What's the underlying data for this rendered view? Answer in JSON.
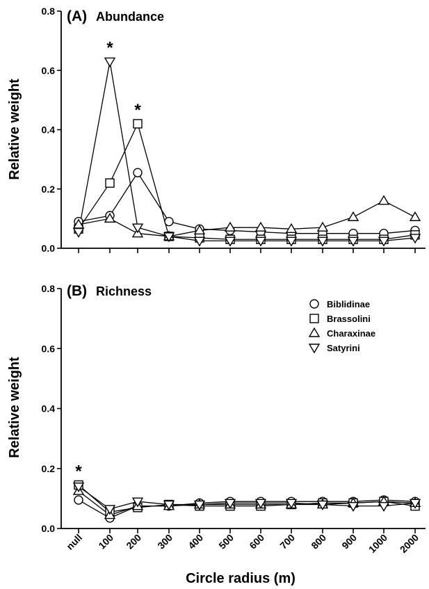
{
  "chart_data": [
    {
      "type": "line",
      "panel_label": "(A)",
      "title": "Abundance",
      "xlabel": "",
      "ylabel": "Relative weight",
      "ylim": [
        0,
        0.8
      ],
      "yticks": [
        "0.0",
        "0.2",
        "0.4",
        "0.6",
        "0.8"
      ],
      "grid": false,
      "categories": [
        "null",
        "100",
        "200",
        "300",
        "400",
        "500",
        "600",
        "700",
        "800",
        "900",
        "1000",
        "2000"
      ],
      "series": [
        {
          "name": "Biblidinae",
          "marker": "circle",
          "x": [
            0,
            1,
            2,
            3,
            4,
            5,
            6,
            7,
            8,
            9,
            10,
            11
          ],
          "values": [
            0.09,
            0.11,
            0.255,
            0.09,
            0.065,
            0.06,
            0.055,
            0.05,
            0.05,
            0.05,
            0.05,
            0.06
          ]
        },
        {
          "name": "Brassolini",
          "marker": "square",
          "x": [
            0,
            1,
            2,
            3,
            4,
            5,
            6,
            7,
            8,
            9,
            10,
            11
          ],
          "values": [
            0.065,
            0.22,
            0.42,
            0.04,
            0.035,
            0.03,
            0.03,
            0.03,
            0.03,
            0.03,
            0.03,
            0.045
          ]
        },
        {
          "name": "Charaxinae",
          "marker": "triangle-up",
          "x": [
            0,
            1,
            2,
            3,
            4,
            5,
            6,
            7,
            8,
            9,
            10,
            11
          ],
          "values": [
            0.08,
            0.1,
            0.05,
            0.04,
            0.06,
            0.07,
            0.07,
            0.065,
            0.07,
            0.105,
            0.16,
            0.105
          ]
        },
        {
          "name": "Satyrini",
          "marker": "triangle-down",
          "x": [
            0,
            1,
            2,
            3,
            4,
            5,
            6,
            7,
            8,
            9,
            10,
            11
          ],
          "values": [
            0.055,
            0.63,
            0.07,
            0.04,
            0.025,
            0.025,
            0.025,
            0.025,
            0.025,
            0.025,
            0.025,
            0.035
          ]
        }
      ],
      "annotations": [
        {
          "text": "*",
          "x": 1,
          "y": 0.63
        },
        {
          "text": "*",
          "x": 2,
          "y": 0.42
        }
      ]
    },
    {
      "type": "line",
      "panel_label": "(B)",
      "title": "Richness",
      "xlabel": "Circle radius (m)",
      "ylabel": "Relative weight",
      "ylim": [
        0,
        0.8
      ],
      "yticks": [
        "0.0",
        "0.2",
        "0.4",
        "0.6",
        "0.8"
      ],
      "grid": false,
      "legend_position": "top-right",
      "categories": [
        "null",
        "100",
        "200",
        "300",
        "400",
        "500",
        "600",
        "700",
        "800",
        "900",
        "1000",
        "2000"
      ],
      "series": [
        {
          "name": "Biblidinae",
          "marker": "circle",
          "values": [
            0.095,
            0.035,
            0.075,
            0.075,
            0.085,
            0.09,
            0.09,
            0.09,
            0.09,
            0.09,
            0.095,
            0.09
          ]
        },
        {
          "name": "Brassolini",
          "marker": "square",
          "values": [
            0.145,
            0.055,
            0.07,
            0.08,
            0.075,
            0.075,
            0.075,
            0.08,
            0.085,
            0.085,
            0.09,
            0.075
          ]
        },
        {
          "name": "Charaxinae",
          "marker": "triangle-up",
          "values": [
            0.125,
            0.045,
            0.075,
            0.075,
            0.08,
            0.08,
            0.08,
            0.08,
            0.08,
            0.085,
            0.09,
            0.085
          ]
        },
        {
          "name": "Satyrini",
          "marker": "triangle-down",
          "values": [
            0.14,
            0.065,
            0.09,
            0.08,
            0.08,
            0.085,
            0.085,
            0.085,
            0.08,
            0.075,
            0.075,
            0.085
          ]
        }
      ],
      "annotations": [
        {
          "text": "*",
          "x": 0,
          "y": 0.145
        }
      ]
    }
  ]
}
